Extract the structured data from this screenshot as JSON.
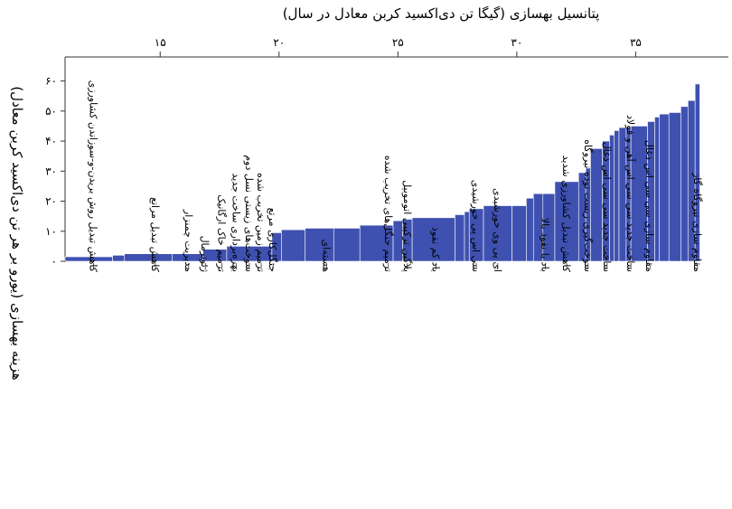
{
  "chart_data": {
    "type": "bar",
    "variant": "marginal-abatement-cost-curve",
    "title": "",
    "xlabel": "پتانسیل بهسازی (گیگا تن دی‌اکسید کربن معادل در سال)",
    "ylabel": "هزینه بهسازی (یورو بر هر تن دی‌اکسید کربن معادل)",
    "x_axis_position": "top",
    "xlim": [
      11,
      38.9
    ],
    "ylim": [
      0,
      68
    ],
    "xticks": [
      15,
      20,
      25,
      30,
      35
    ],
    "yticks": [
      0,
      10,
      20,
      30,
      40,
      50,
      60
    ],
    "ytick_labels": [
      "۰",
      "۱۰",
      "۲۰",
      "۳۰",
      "۴۰",
      "۵۰",
      "۶۰"
    ],
    "xtick_labels": [
      "۱۵",
      "۲۰",
      "۲۵",
      "۳۰",
      "۳۵"
    ],
    "bar_color": "#3f51b0",
    "segments": [
      [
        11.0,
        13.0,
        1.5
      ],
      [
        13.0,
        13.5,
        2.0
      ],
      [
        13.5,
        15.5,
        2.5
      ],
      [
        15.5,
        16.8,
        2.5
      ],
      [
        16.8,
        17.8,
        4.0
      ],
      [
        17.8,
        19.7,
        5.0
      ],
      [
        19.7,
        20.1,
        9.5
      ],
      [
        20.1,
        21.1,
        10.5
      ],
      [
        21.1,
        22.3,
        11.0
      ],
      [
        22.3,
        23.4,
        11.0
      ],
      [
        23.4,
        24.8,
        12.0
      ],
      [
        24.8,
        25.2,
        13.5
      ],
      [
        25.2,
        25.6,
        14.0
      ],
      [
        25.6,
        27.4,
        14.5
      ],
      [
        27.4,
        27.8,
        15.5
      ],
      [
        27.8,
        28.0,
        16.5
      ],
      [
        28.0,
        28.6,
        17.5
      ],
      [
        28.6,
        29.8,
        18.5
      ],
      [
        29.8,
        30.4,
        18.5
      ],
      [
        30.4,
        30.7,
        21.0
      ],
      [
        30.7,
        31.1,
        22.5
      ],
      [
        31.1,
        31.6,
        22.5
      ],
      [
        31.6,
        32.6,
        26.5
      ],
      [
        32.6,
        32.9,
        29.5
      ],
      [
        32.9,
        33.1,
        31.0
      ],
      [
        33.1,
        33.6,
        37.5
      ],
      [
        33.6,
        33.9,
        40.0
      ],
      [
        33.9,
        34.1,
        42.0
      ],
      [
        34.1,
        34.3,
        43.5
      ],
      [
        34.3,
        34.6,
        44.5
      ],
      [
        34.6,
        34.8,
        44.5
      ],
      [
        34.8,
        35.5,
        45.0
      ],
      [
        35.5,
        35.8,
        46.5
      ],
      [
        35.8,
        36.0,
        48.0
      ],
      [
        36.0,
        36.4,
        49.0
      ],
      [
        36.4,
        36.9,
        49.5
      ],
      [
        36.9,
        37.2,
        51.5
      ],
      [
        37.2,
        37.5,
        53.5
      ],
      [
        37.5,
        37.7,
        59.0
      ]
    ],
    "categories": [
      {
        "label": "کاهش تبدیل روش بریدن-و-سوزاندن کشاورزی",
        "x": 12.2
      },
      {
        "label": "کاهش تبدیل مراتع",
        "x": 14.8
      },
      {
        "label": "مدیریت چمنزار",
        "x": 16.2
      },
      {
        "label": "ژئوترمال",
        "x": 16.9
      },
      {
        "label": "ترمیم خاک ارگانیک",
        "x": 17.6
      },
      {
        "label": "بهره‌برداری ساخت جدید",
        "x": 18.2
      },
      {
        "label": "سوخت‌های زیستی نسل دوم",
        "x": 18.75
      },
      {
        "label": "ترمیم زمین تخریب شده",
        "x": 19.25
      },
      {
        "label": "جنگل‌کاری مرتع",
        "x": 19.75
      },
      {
        "label": "هسته‌ای",
        "x": 22.0
      },
      {
        "label": "ترمیم جنگل‌های تخریب شده",
        "x": 24.6
      },
      {
        "label": "پلاگین ترکیبی اتوموبیل",
        "x": 25.4
      },
      {
        "label": "باد کم نفوذ",
        "x": 26.6
      },
      {
        "label": "سی اس پی خورشیدی",
        "x": 28.3
      },
      {
        "label": "ای پی وی خورشیدی",
        "x": 29.2
      },
      {
        "label": "باد با نفوذ بالا",
        "x": 31.2
      },
      {
        "label": "کاهش تبدیل کشاورزی شدید",
        "x": 32.1
      },
      {
        "label": "سوخت‌گیری زیست توده نیروگاه",
        "x": 33.0
      },
      {
        "label": "ساخت جدید سی سی اس ذغال",
        "x": 33.8
      },
      {
        "label": "ساخت جدید سی سی اس آهن و فولاد",
        "x": 34.8
      },
      {
        "label": "مقاوم سازی سی سی اس ذغال",
        "x": 35.6
      },
      {
        "label": "مقاوم سازی نیروگاه گاز",
        "x": 37.6
      }
    ]
  }
}
